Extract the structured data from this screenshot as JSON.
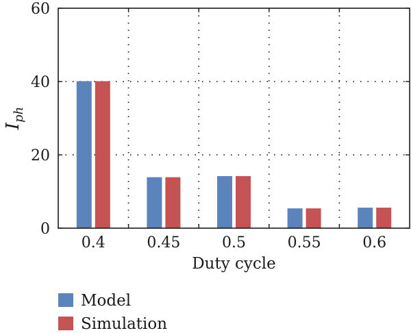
{
  "chart_data": {
    "type": "bar",
    "categories": [
      "0.4",
      "0.45",
      "0.5",
      "0.55",
      "0.6"
    ],
    "series": [
      {
        "name": "Model",
        "values": [
          40.1,
          13.9,
          14.2,
          5.4,
          5.6
        ],
        "color": "#5b84bd"
      },
      {
        "name": "Simulation",
        "values": [
          40.1,
          13.9,
          14.2,
          5.4,
          5.6
        ],
        "color": "#c65353"
      }
    ],
    "xlabel": "Duty cycle",
    "ylabel": {
      "main": "I",
      "sub": "ph"
    },
    "ylim": [
      0,
      60
    ],
    "yticks": [
      0,
      20,
      40,
      60
    ],
    "grid": true,
    "legend": "bottom-left"
  }
}
